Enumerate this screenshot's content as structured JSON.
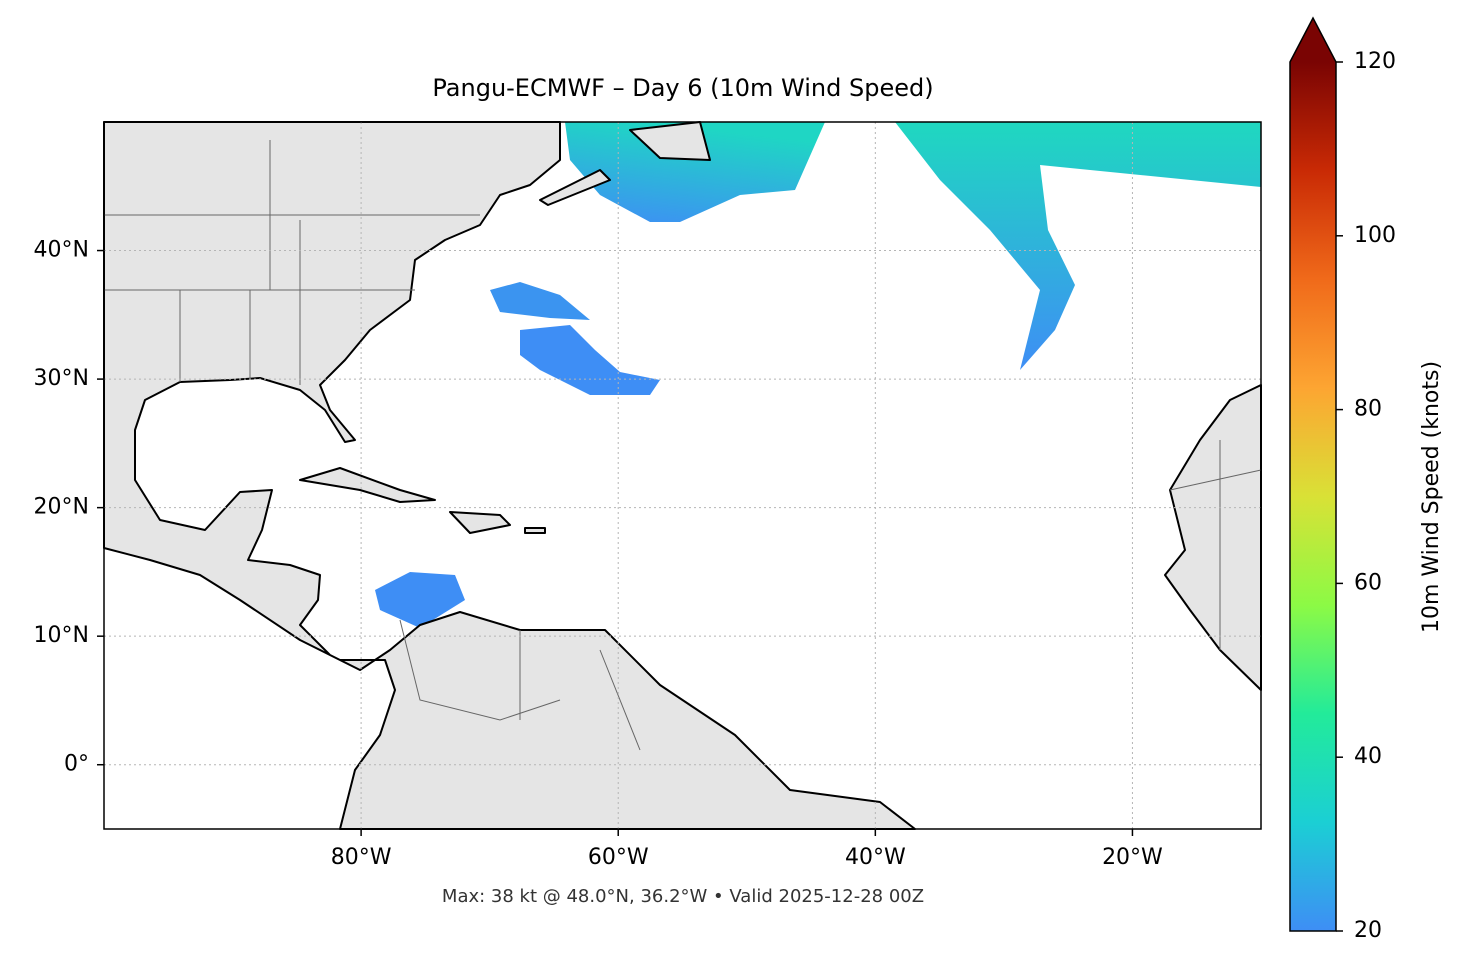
{
  "chart_data": {
    "type": "map",
    "title": "Pangu-ECMWF – Day 6 (10m Wind Speed)",
    "annotation": "Max: 38 kt @ 48.0°N, 36.2°W • Valid 2025-12-28 00Z",
    "xlim": [
      -100,
      -10
    ],
    "ylim": [
      -5,
      50
    ],
    "xticks": [
      {
        "value": -80,
        "label": "80°W"
      },
      {
        "value": -60,
        "label": "60°W"
      },
      {
        "value": -40,
        "label": "40°W"
      },
      {
        "value": -20,
        "label": "20°W"
      }
    ],
    "yticks": [
      {
        "value": 0,
        "label": "0°"
      },
      {
        "value": 10,
        "label": "10°N"
      },
      {
        "value": 20,
        "label": "20°N"
      },
      {
        "value": 30,
        "label": "30°N"
      },
      {
        "value": 40,
        "label": "40°N"
      }
    ],
    "grid": true,
    "colorbar": {
      "label": "10m Wind Speed (knots)",
      "lim": [
        20,
        120
      ],
      "ticks": [
        20,
        40,
        60,
        80,
        100,
        120
      ],
      "extend": "max",
      "colors": [
        "#3e8ef5",
        "#1bcfd4",
        "#22eb9a",
        "#8cfa45",
        "#d9e136",
        "#fda532",
        "#f06a1a",
        "#c92a05",
        "#7a0403"
      ]
    }
  }
}
